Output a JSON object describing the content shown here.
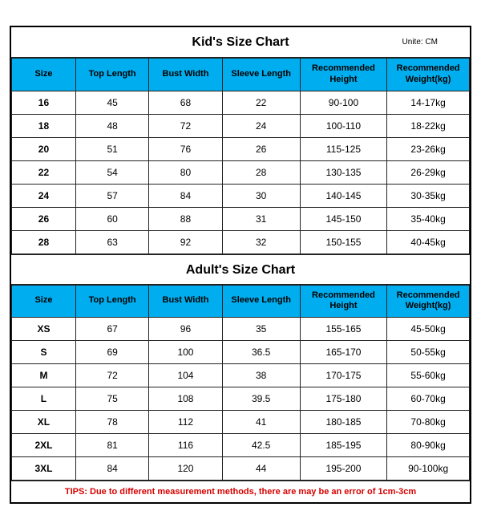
{
  "kids": {
    "title": "Kid's Size Chart",
    "unit": "Unite: CM",
    "columns": [
      "Size",
      "Top Length",
      "Bust Width",
      "Sleeve Length",
      "Recommended Height",
      "Recommended Weight(kg)"
    ],
    "rows": [
      [
        "16",
        "45",
        "68",
        "22",
        "90-100",
        "14-17kg"
      ],
      [
        "18",
        "48",
        "72",
        "24",
        "100-110",
        "18-22kg"
      ],
      [
        "20",
        "51",
        "76",
        "26",
        "115-125",
        "23-26kg"
      ],
      [
        "22",
        "54",
        "80",
        "28",
        "130-135",
        "26-29kg"
      ],
      [
        "24",
        "57",
        "84",
        "30",
        "140-145",
        "30-35kg"
      ],
      [
        "26",
        "60",
        "88",
        "31",
        "145-150",
        "35-40kg"
      ],
      [
        "28",
        "63",
        "92",
        "32",
        "150-155",
        "40-45kg"
      ]
    ]
  },
  "adults": {
    "title": "Adult's Size Chart",
    "columns": [
      "Size",
      "Top Length",
      "Bust Width",
      "Sleeve Length",
      "Recommended Height",
      "Recommended Weight(kg)"
    ],
    "rows": [
      [
        "XS",
        "67",
        "96",
        "35",
        "155-165",
        "45-50kg"
      ],
      [
        "S",
        "69",
        "100",
        "36.5",
        "165-170",
        "50-55kg"
      ],
      [
        "M",
        "72",
        "104",
        "38",
        "170-175",
        "55-60kg"
      ],
      [
        "L",
        "75",
        "108",
        "39.5",
        "175-180",
        "60-70kg"
      ],
      [
        "XL",
        "78",
        "112",
        "41",
        "180-185",
        "70-80kg"
      ],
      [
        "2XL",
        "81",
        "116",
        "42.5",
        "185-195",
        "80-90kg"
      ],
      [
        "3XL",
        "84",
        "120",
        "44",
        "195-200",
        "90-100kg"
      ]
    ]
  },
  "tips": "TIPS: Due to different measurement methods, there are may be an error of 1cm-3cm",
  "styling": {
    "header_bg": "#00aeef",
    "border_color": "#222222",
    "outer_border_color": "#000000",
    "tips_color": "#d80000",
    "title_fontsize": 16,
    "header_fontsize": 11,
    "cell_fontsize": 12,
    "col_widths_pct": [
      14,
      16,
      16,
      17,
      19,
      18
    ]
  }
}
